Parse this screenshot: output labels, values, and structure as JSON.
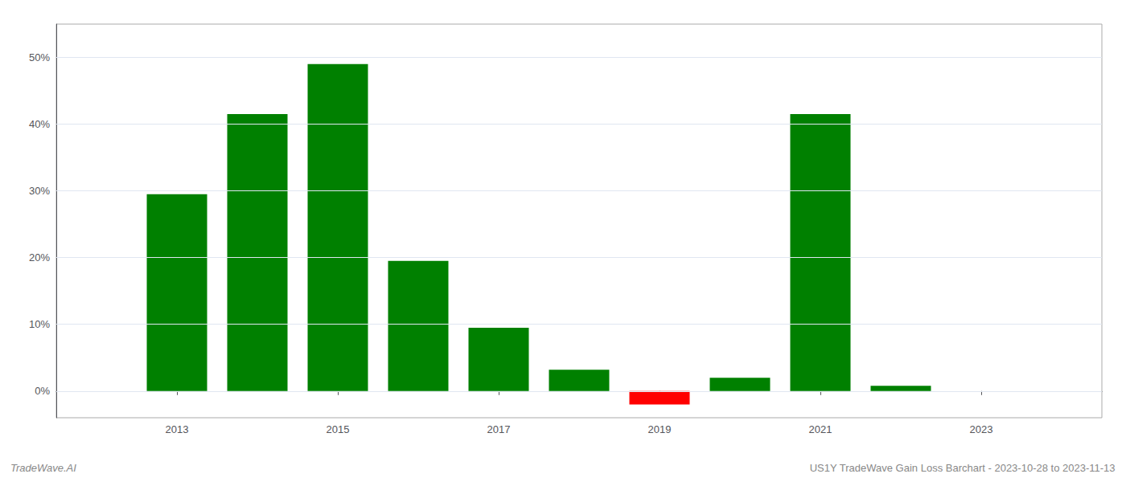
{
  "chart_data": {
    "type": "bar",
    "x": [
      2013,
      2014,
      2015,
      2016,
      2017,
      2018,
      2019,
      2020,
      2021,
      2022,
      2023
    ],
    "values": [
      29.5,
      41.5,
      49.0,
      19.5,
      9.5,
      3.2,
      -2.0,
      2.0,
      41.5,
      0.8,
      0.0
    ],
    "colors": [
      "#008000",
      "#008000",
      "#008000",
      "#008000",
      "#008000",
      "#008000",
      "#ff0000",
      "#008000",
      "#008000",
      "#008000",
      "#008000"
    ],
    "xlim": [
      2011.5,
      2024.5
    ],
    "xticks": [
      2013,
      2015,
      2017,
      2019,
      2021,
      2023
    ],
    "ylim": [
      -4.0,
      55.0
    ],
    "yticks": [
      {
        "value": 0,
        "label": "0%"
      },
      {
        "value": 10,
        "label": "10%"
      },
      {
        "value": 20,
        "label": "20%"
      },
      {
        "value": 30,
        "label": "30%"
      },
      {
        "value": 40,
        "label": "40%"
      },
      {
        "value": 50,
        "label": "50%"
      }
    ],
    "grid": true,
    "annotations": [
      "TradeWave.AI",
      "US1Y TradeWave Gain Loss Barchart - 2023-10-28 to 2023-11-13"
    ]
  }
}
